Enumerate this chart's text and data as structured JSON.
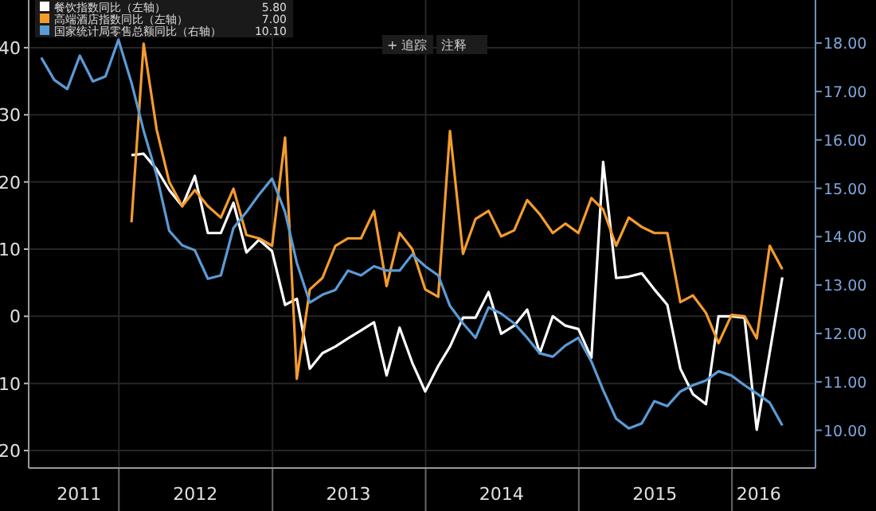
{
  "chart_data": {
    "type": "line",
    "x": [
      "2011-06-30",
      "2011-07-31",
      "2011-08-31",
      "2011-09-30",
      "2011-10-31",
      "2011-11-30",
      "2011-12-31",
      "2012-01-31",
      "2012-02-29",
      "2012-03-31",
      "2012-04-30",
      "2012-05-31",
      "2012-06-30",
      "2012-07-31",
      "2012-08-31",
      "2012-09-30",
      "2012-10-31",
      "2012-11-30",
      "2012-12-31",
      "2013-01-31",
      "2013-02-28",
      "2013-03-31",
      "2013-04-30",
      "2013-05-31",
      "2013-06-30",
      "2013-07-31",
      "2013-08-31",
      "2013-09-30",
      "2013-10-31",
      "2013-11-30",
      "2013-12-31",
      "2014-01-31",
      "2014-02-28",
      "2014-03-31",
      "2014-04-30",
      "2014-05-31",
      "2014-06-30",
      "2014-07-31",
      "2014-08-31",
      "2014-09-30",
      "2014-10-31",
      "2014-11-30",
      "2014-12-31",
      "2015-01-31",
      "2015-02-28",
      "2015-03-31",
      "2015-04-30",
      "2015-05-31",
      "2015-06-30",
      "2015-07-31",
      "2015-08-31",
      "2015-09-30",
      "2015-10-31",
      "2015-11-30",
      "2015-12-31",
      "2016-01-31",
      "2016-02-29",
      "2016-03-31",
      "2016-04-30"
    ],
    "series": [
      {
        "name": "餐饮指数同比（左轴）",
        "color": "#ffffff",
        "x": [
          "2012-01-31",
          "2012-02-29",
          "2012-03-31",
          "2012-04-30",
          "2012-05-31",
          "2012-06-30",
          "2012-07-31",
          "2012-08-31",
          "2012-09-30",
          "2012-10-31",
          "2012-11-30",
          "2012-12-31",
          "2013-01-31",
          "2013-02-28",
          "2013-03-31",
          "2013-04-30",
          "2013-05-31",
          "2013-06-30",
          "2013-07-31",
          "2013-08-31",
          "2013-09-30",
          "2013-10-31",
          "2013-11-30",
          "2013-12-31",
          "2014-01-31",
          "2014-02-28",
          "2014-03-31",
          "2014-04-30",
          "2014-05-31",
          "2014-06-30",
          "2014-07-31",
          "2014-08-31",
          "2014-09-30",
          "2014-10-31",
          "2014-11-30",
          "2014-12-31",
          "2015-01-31",
          "2015-02-28",
          "2015-03-31",
          "2015-04-30",
          "2015-05-31",
          "2015-06-30",
          "2015-07-31",
          "2015-08-31",
          "2015-09-30",
          "2015-10-31",
          "2015-11-30",
          "2015-12-31",
          "2016-01-31",
          "2016-02-29",
          "2016-04-30"
        ],
        "values": [
          24.0,
          24.2,
          21.9,
          18.8,
          16.4,
          20.9,
          12.4,
          12.4,
          16.9,
          9.5,
          11.4,
          9.7,
          1.7,
          2.6,
          -7.8,
          -5.5,
          -4.5,
          -3.3,
          -2.1,
          -0.9,
          -8.8,
          -1.7,
          -6.9,
          -11.2,
          -7.4,
          -4.5,
          -0.2,
          -0.2,
          3.6,
          -2.6,
          -1.4,
          1.0,
          -5.5,
          0.0,
          -1.4,
          -1.9,
          -6.2,
          23.0,
          5.7,
          5.9,
          6.4,
          4.0,
          1.7,
          -7.8,
          -11.6,
          -13.1,
          0.0,
          0.0,
          -0.2,
          -16.9,
          5.8
        ]
      },
      {
        "name": "高端酒店指数同比（左轴）",
        "color": "#f39c2e",
        "values": [
          null,
          null,
          null,
          null,
          null,
          null,
          null,
          14.0,
          40.6,
          27.8,
          20.0,
          16.4,
          18.8,
          16.4,
          14.7,
          19.0,
          12.1,
          11.6,
          10.5,
          26.6,
          -9.3,
          4.0,
          5.7,
          10.5,
          11.6,
          11.6,
          15.7,
          4.5,
          12.4,
          10.0,
          4.0,
          2.9,
          27.6,
          9.3,
          14.5,
          15.7,
          11.9,
          12.8,
          17.3,
          15.2,
          12.4,
          13.8,
          12.4,
          17.6,
          15.9,
          10.5,
          14.7,
          13.3,
          12.4,
          12.4,
          2.1,
          3.1,
          0.5,
          -4.0,
          0.2,
          0.0,
          -3.3,
          10.5,
          7.0
        ]
      },
      {
        "name": "国家统计局零售总额同比（右轴）",
        "color": "#5b9bd5",
        "axis": "y2",
        "values": [
          17.7,
          17.24,
          17.05,
          17.74,
          17.21,
          17.31,
          18.07,
          17.18,
          16.19,
          15.27,
          14.12,
          13.82,
          13.72,
          13.13,
          13.2,
          14.18,
          14.51,
          14.87,
          15.2,
          14.51,
          13.46,
          12.64,
          12.8,
          12.9,
          13.3,
          13.2,
          13.39,
          13.3,
          13.3,
          13.63,
          13.39,
          13.2,
          12.57,
          12.21,
          11.91,
          12.54,
          12.41,
          12.21,
          11.91,
          11.59,
          11.52,
          11.75,
          11.91,
          11.42,
          10.83,
          10.24,
          10.04,
          10.14,
          10.6,
          10.5,
          10.8,
          10.93,
          11.03,
          11.22,
          11.13,
          10.93,
          10.76,
          10.57,
          10.1
        ]
      }
    ],
    "xlim": [
      "2011-05-31",
      "2016-07-18"
    ],
    "xticks": [
      {
        "value": "2011-09-28",
        "label": "2011"
      },
      {
        "value": "2012-01-01",
        "label": null
      },
      {
        "value": "2012-07-01",
        "label": "2012"
      },
      {
        "value": "2013-01-01",
        "label": null
      },
      {
        "value": "2013-07-01",
        "label": "2013"
      },
      {
        "value": "2014-01-01",
        "label": null
      },
      {
        "value": "2014-07-01",
        "label": "2014"
      },
      {
        "value": "2015-01-01",
        "label": null
      },
      {
        "value": "2015-07-01",
        "label": "2015"
      },
      {
        "value": "2016-01-01",
        "label": null
      },
      {
        "value": "2016-03-05",
        "label": "2016"
      }
    ],
    "ylim": [
      -22.6,
      47.1
    ],
    "yticks": [
      {
        "value": -20,
        "label": "20"
      },
      {
        "value": -10,
        "label": "10"
      },
      0,
      10,
      20,
      30,
      40
    ],
    "y2lim": [
      9.22,
      18.89
    ],
    "y2ticks": [
      {
        "value": 10,
        "label": "10.00"
      },
      {
        "value": 11,
        "label": "11.00"
      },
      {
        "value": 12,
        "label": "12.00"
      },
      {
        "value": 13,
        "label": "13.00"
      },
      {
        "value": 14,
        "label": "14.00"
      },
      {
        "value": 15,
        "label": "15.00"
      },
      {
        "value": 16,
        "label": "16.00"
      },
      {
        "value": 17,
        "label": "17.00"
      },
      {
        "value": 18,
        "label": "18.00"
      }
    ],
    "grid": true,
    "legend": "top left",
    "annotations": [
      "5.80",
      "7.00",
      "10.10",
      "+ 追踪",
      "注释"
    ]
  }
}
